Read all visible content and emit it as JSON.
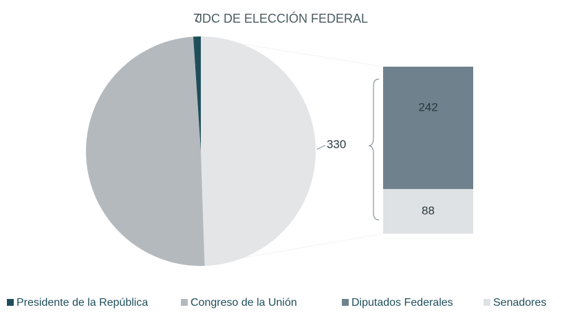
{
  "chart_data": {
    "type": "pie_of_bar",
    "title": "JDC DE ELECCIÓN FEDERAL",
    "categories": [
      "Presidente de la República",
      "Congreso de la Unión",
      "Diputados Federales",
      "Senadores"
    ],
    "values": [
      7,
      330,
      242,
      88
    ],
    "value_labels": [
      "7",
      null,
      "242",
      "88"
    ],
    "colors": [
      "#1f4e5a",
      "#b4b9bd",
      "#6f818c",
      "#dfe2e4"
    ],
    "bar_count": 2,
    "other_value": 330,
    "other_color": "#e3e5e7",
    "legend": "bottom"
  }
}
